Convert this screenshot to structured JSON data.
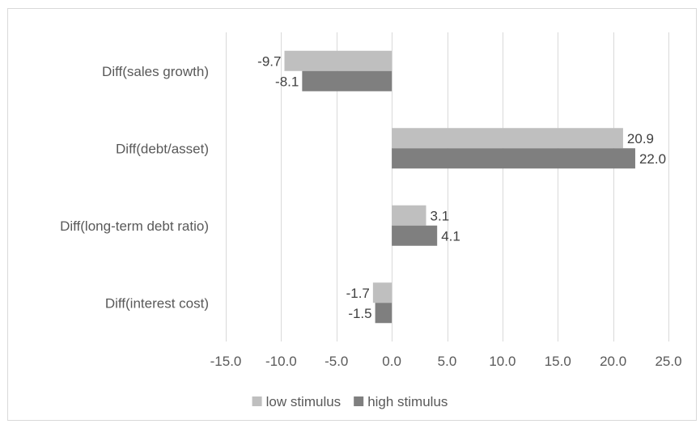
{
  "chart_data": {
    "type": "bar",
    "orientation": "horizontal",
    "categories": [
      "Diff(sales growth)",
      "Diff(debt/asset)",
      "Diff(long-term debt ratio)",
      "Diff(interest cost)"
    ],
    "series": [
      {
        "name": "low stimulus",
        "values": [
          -9.7,
          20.9,
          3.1,
          -1.7
        ],
        "labels": [
          "-9.7",
          "20.9",
          "3.1",
          "-1.7"
        ],
        "color": "#bfbfbf"
      },
      {
        "name": "high stimulus",
        "values": [
          -8.1,
          22.0,
          4.1,
          -1.5
        ],
        "labels": [
          "-8.1",
          "22.0",
          "4.1",
          "-1.5"
        ],
        "color": "#7f7f7f"
      }
    ],
    "xlim": [
      -15,
      25
    ],
    "ticks": [
      -15,
      -10,
      -5,
      0,
      5,
      10,
      15,
      20,
      25
    ],
    "tick_labels": [
      "-15.0",
      "-10.0",
      "-5.0",
      "0.0",
      "5.0",
      "10.0",
      "15.0",
      "20.0",
      "25.0"
    ],
    "grid": true,
    "legend_position": "bottom",
    "gridline_color": "#d9d9d9",
    "border_color": "#d9d9d9"
  }
}
